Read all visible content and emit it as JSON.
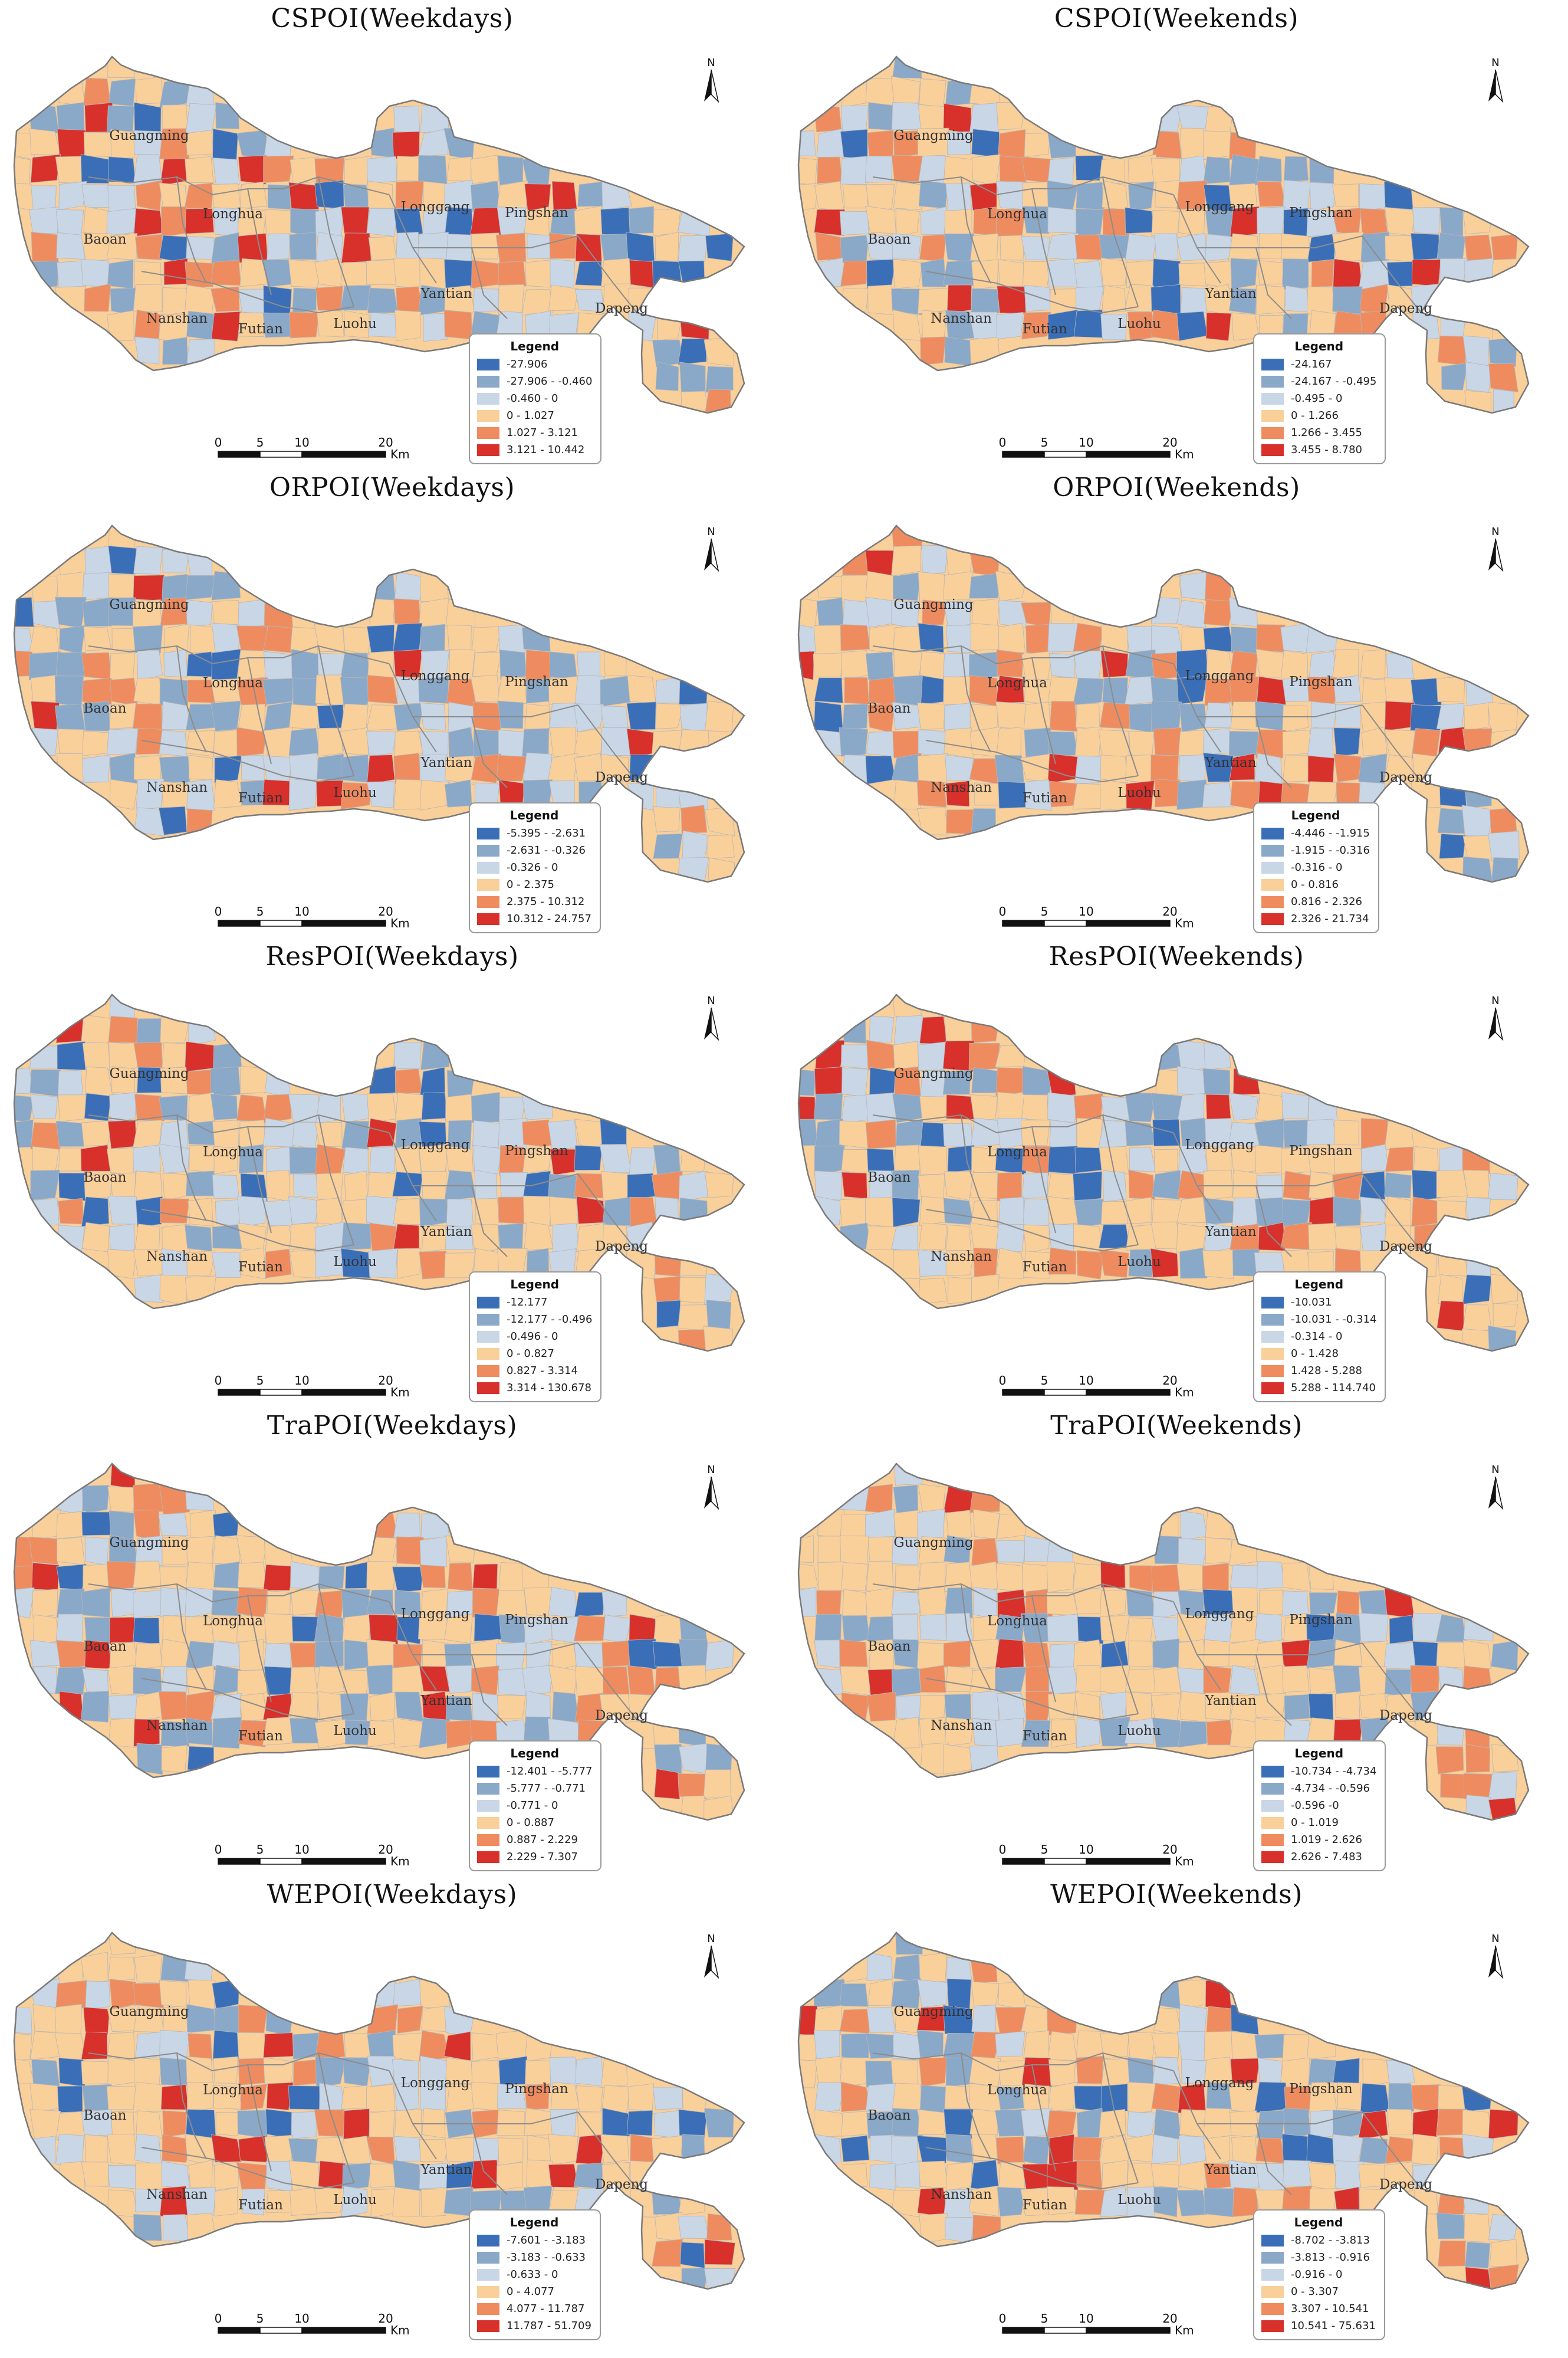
{
  "colors": {
    "class1": "#3a6fb8",
    "class2": "#8aa8c8",
    "class3": "#c8d6e6",
    "class4": "#f9cf9a",
    "class5": "#ef8c5f",
    "class6": "#d8302b",
    "boundary": "#8c8c8c",
    "water": "#ffffff"
  },
  "north_arrow_letter": "N",
  "district_names": [
    "Guangming",
    "Longhua",
    "Baoan",
    "Nanshan",
    "Futian",
    "Luohu",
    "Yantian",
    "Longgang",
    "Pingshan",
    "Dapeng"
  ],
  "scale": {
    "ticks": [
      "0",
      "5",
      "10",
      "20"
    ],
    "unit": "Km"
  },
  "legend_title": "Legend",
  "panels": [
    {
      "title": "CSPOI(Weekdays)",
      "legend": [
        "-27.906",
        "-27.906 - -0.460",
        "-0.460 - 0",
        "0 - 1.027",
        "1.027 - 3.121",
        "3.121 - 10.442"
      ]
    },
    {
      "title": "CSPOI(Weekends)",
      "legend": [
        "-24.167",
        "-24.167 - -0.495",
        "-0.495 - 0",
        "0 - 1.266",
        "1.266 - 3.455",
        "3.455 - 8.780"
      ]
    },
    {
      "title": "ORPOI(Weekdays)",
      "legend": [
        "-5.395 - -2.631",
        "-2.631 - -0.326",
        "-0.326 - 0",
        "0 - 2.375",
        "2.375 - 10.312",
        "10.312 - 24.757"
      ]
    },
    {
      "title": "ORPOI(Weekends)",
      "legend": [
        "-4.446 - -1.915",
        "-1.915 - -0.316",
        "-0.316 - 0",
        "0 - 0.816",
        "0.816 - 2.326",
        "2.326 - 21.734"
      ]
    },
    {
      "title": "ResPOI(Weekdays)",
      "legend": [
        "-12.177",
        "-12.177 - -0.496",
        "-0.496 - 0",
        "0 - 0.827",
        "0.827 - 3.314",
        "3.314 - 130.678"
      ]
    },
    {
      "title": "ResPOI(Weekends)",
      "legend": [
        "-10.031",
        "-10.031 - -0.314",
        "-0.314 - 0",
        "0 - 1.428",
        "1.428 - 5.288",
        "5.288 - 114.740"
      ]
    },
    {
      "title": "TraPOI(Weekdays)",
      "legend": [
        "-12.401 - -5.777",
        "-5.777 - -0.771",
        "-0.771 - 0",
        "0 - 0.887",
        "0.887 - 2.229",
        "2.229 - 7.307"
      ]
    },
    {
      "title": "TraPOI(Weekends)",
      "legend": [
        "-10.734 - -4.734",
        "-4.734 - -0.596",
        "-0.596 -0",
        "0 - 1.019",
        "1.019 - 2.626",
        "2.626 - 7.483"
      ]
    },
    {
      "title": "WEPOI(Weekdays)",
      "legend": [
        "-7.601 - -3.183",
        "-3.183 - -0.633",
        "-0.633 - 0",
        "0 - 4.077",
        "4.077 - 11.787",
        "11.787 - 51.709"
      ]
    },
    {
      "title": "WEPOI(Weekends)",
      "legend": [
        "-8.702 - -3.813",
        "-3.813 - -0.916",
        "-0.916 - 0",
        "0 - 3.307",
        "3.307 - 10.541",
        "10.541 - 75.631"
      ]
    }
  ]
}
